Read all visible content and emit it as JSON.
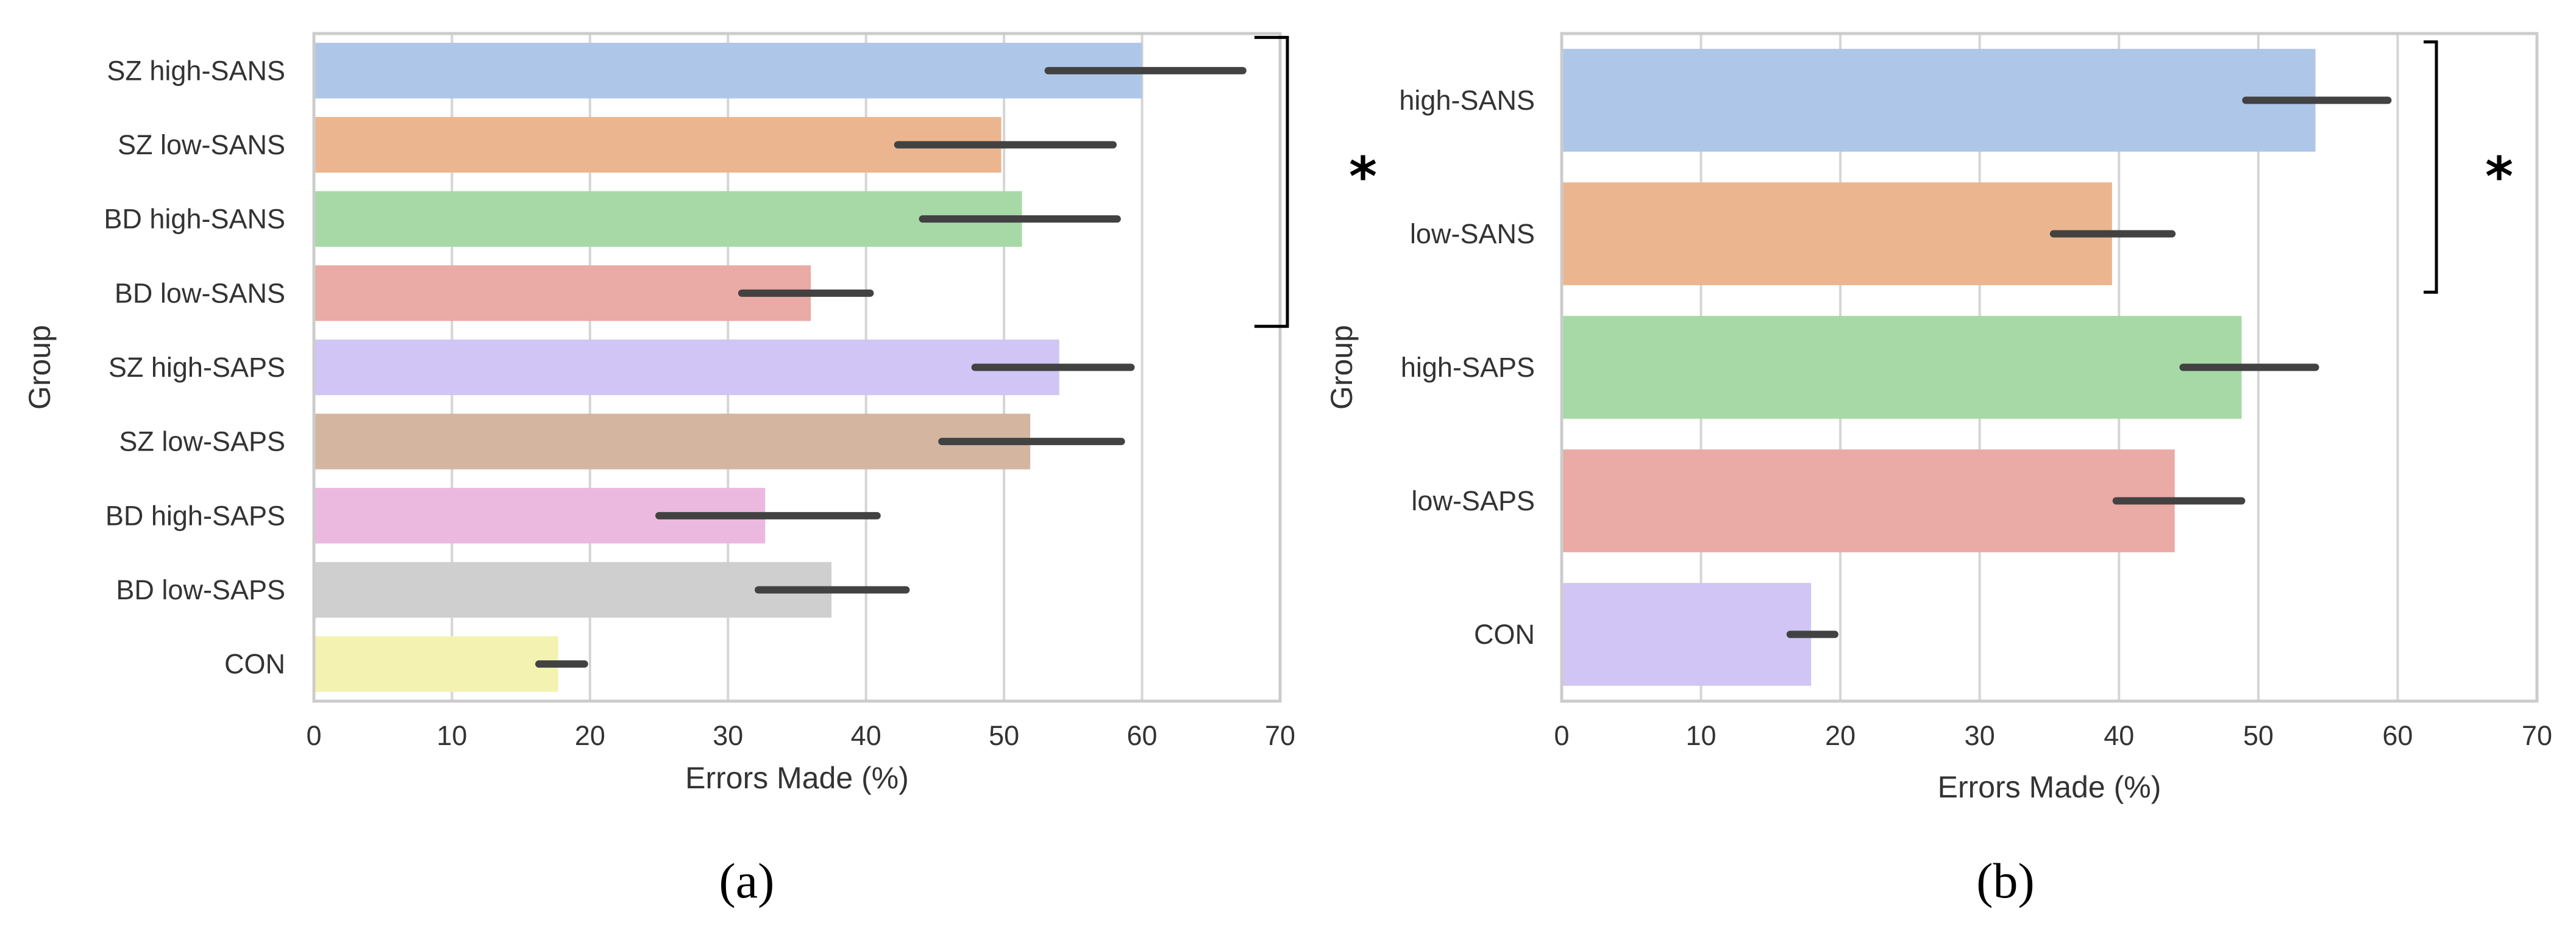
{
  "chart_data": [
    {
      "type": "bar",
      "orientation": "horizontal",
      "caption": "(a)",
      "xlabel": "Errors Made (%)",
      "ylabel": "Group",
      "xlim": [
        0,
        70
      ],
      "xticks": [
        0,
        10,
        20,
        30,
        40,
        50,
        60,
        70
      ],
      "grid": true,
      "categories": [
        "SZ high-SANS",
        "SZ low-SANS",
        "BD high-SANS",
        "BD low-SANS",
        "SZ high-SAPS",
        "SZ low-SAPS",
        "BD high-SAPS",
        "BD low-SAPS",
        "CON"
      ],
      "values": [
        60,
        49.8,
        51.3,
        36,
        54,
        51.9,
        32.7,
        37.5,
        17.7
      ],
      "ci_low": [
        53.2,
        42.3,
        44.1,
        31,
        47.9,
        45.5,
        25,
        32.2,
        16.3
      ],
      "ci_high": [
        67.3,
        57.9,
        58.2,
        40.3,
        59.2,
        58.5,
        40.8,
        42.9,
        19.6
      ],
      "colors": [
        "#aec7e8",
        "#ebb68f",
        "#a6d9a6",
        "#eaaaa5",
        "#d0c5f4",
        "#d4b6a0",
        "#ebb9df",
        "#cfcfcf",
        "#f4f2b0"
      ],
      "annotation": {
        "text": "*",
        "bracket_from": "SZ high-SANS",
        "bracket_to": "BD low-SANS"
      }
    },
    {
      "type": "bar",
      "orientation": "horizontal",
      "caption": "(b)",
      "xlabel": "Errors Made (%)",
      "ylabel": "Group",
      "xlim": [
        0,
        70
      ],
      "xticks": [
        0,
        10,
        20,
        30,
        40,
        50,
        60,
        70
      ],
      "grid": true,
      "categories": [
        "high-SANS",
        "low-SANS",
        "high-SAPS",
        "low-SAPS",
        "CON"
      ],
      "values": [
        54.1,
        39.5,
        48.8,
        44,
        17.9
      ],
      "ci_low": [
        49.1,
        35.3,
        44.6,
        39.8,
        16.4
      ],
      "ci_high": [
        59.3,
        43.8,
        54.1,
        48.8,
        19.6
      ],
      "colors": [
        "#aec7e8",
        "#ebb68f",
        "#a6d9a6",
        "#eaaaa5",
        "#d0c5f4"
      ],
      "annotation": {
        "text": "*",
        "bracket_from": "high-SANS",
        "bracket_to": "low-SANS"
      }
    }
  ]
}
